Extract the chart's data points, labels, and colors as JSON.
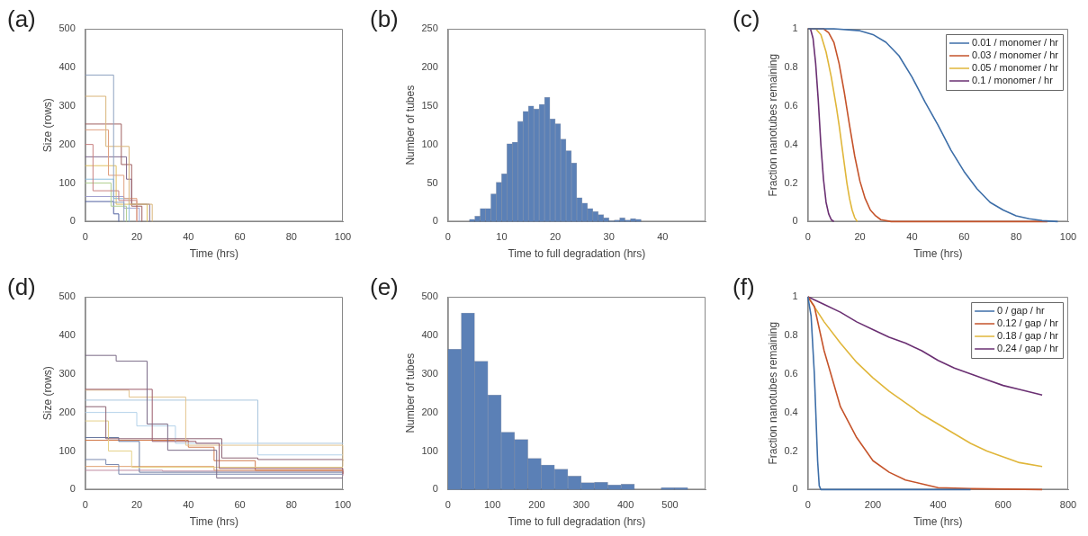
{
  "chart_data": [
    {
      "type": "step",
      "title": "(a)",
      "xlabel": "Time (hrs)",
      "ylabel": "Size (rows)",
      "xlim": [
        0,
        100
      ],
      "xticks": [
        0,
        20,
        40,
        60,
        80,
        100
      ],
      "ylim": [
        0,
        500
      ],
      "yticks": [
        0,
        100,
        200,
        300,
        400,
        500
      ],
      "series": [
        {
          "color": "#8fa3c0",
          "x": [
            0,
            11,
            15
          ],
          "values": [
            380,
            50,
            0
          ]
        },
        {
          "color": "#d9b57a",
          "x": [
            0,
            8,
            17,
            26
          ],
          "values": [
            325,
            195,
            45,
            0
          ]
        },
        {
          "color": "#a06060",
          "x": [
            0,
            14,
            18,
            22
          ],
          "values": [
            253,
            148,
            40,
            0
          ]
        },
        {
          "color": "#e0a080",
          "x": [
            0,
            9,
            15,
            20
          ],
          "values": [
            238,
            120,
            60,
            0
          ]
        },
        {
          "color": "#c98080",
          "x": [
            0,
            3,
            13,
            20
          ],
          "values": [
            200,
            80,
            55,
            0
          ]
        },
        {
          "color": "#7f6a90",
          "x": [
            0,
            16,
            18,
            25
          ],
          "values": [
            168,
            110,
            45,
            0
          ]
        },
        {
          "color": "#8cc0e0",
          "x": [
            0,
            11,
            17
          ],
          "values": [
            110,
            60,
            0
          ]
        },
        {
          "color": "#b0d090",
          "x": [
            0,
            10,
            16
          ],
          "values": [
            100,
            40,
            0
          ]
        },
        {
          "color": "#a0a0d0",
          "x": [
            0,
            15,
            21
          ],
          "values": [
            65,
            35,
            0
          ]
        },
        {
          "color": "#5060a0",
          "x": [
            0,
            11,
            13
          ],
          "values": [
            52,
            20,
            0
          ]
        },
        {
          "color": "#e0c060",
          "x": [
            0,
            12,
            24
          ],
          "values": [
            145,
            45,
            0
          ]
        }
      ]
    },
    {
      "type": "histogram",
      "title": "(b)",
      "xlabel": "Time to full degradation (hrs)",
      "ylabel": "Number of tubes",
      "xlim": [
        0,
        48
      ],
      "xticks": [
        0,
        10,
        20,
        30,
        40
      ],
      "ylim": [
        0,
        250
      ],
      "yticks": [
        0,
        50,
        100,
        150,
        200,
        250
      ],
      "color": "#5b80b6",
      "bins": [
        4,
        5,
        6,
        7,
        8,
        9,
        10,
        11,
        12,
        13,
        14,
        15,
        16,
        17,
        18,
        19,
        20,
        21,
        22,
        23,
        24,
        25,
        26,
        27,
        28,
        29,
        30,
        31,
        32,
        33,
        34,
        35,
        36
      ],
      "values": [
        3,
        7,
        17,
        17,
        36,
        51,
        62,
        101,
        103,
        130,
        143,
        150,
        146,
        152,
        161,
        133,
        127,
        107,
        92,
        76,
        31,
        24,
        17,
        13,
        9,
        5,
        1,
        2,
        5,
        2,
        4,
        3
      ]
    },
    {
      "type": "line",
      "title": "(c)",
      "xlabel": "Time (hrs)",
      "ylabel": "Fraction nanotubes remaining",
      "xlim": [
        0,
        100
      ],
      "xticks": [
        0,
        20,
        40,
        60,
        80,
        100
      ],
      "ylim": [
        0,
        1
      ],
      "yticks": [
        0,
        0.2,
        0.4,
        0.6,
        0.8,
        1
      ],
      "legend": "top right",
      "series": [
        {
          "name": "0.01 / monomer / hr",
          "color": "#3d6ea8",
          "x": [
            0,
            10,
            20,
            25,
            30,
            35,
            40,
            45,
            50,
            55,
            60,
            65,
            70,
            75,
            80,
            85,
            90,
            96
          ],
          "values": [
            1,
            1,
            0.99,
            0.97,
            0.93,
            0.86,
            0.75,
            0.62,
            0.5,
            0.37,
            0.26,
            0.17,
            0.1,
            0.06,
            0.03,
            0.015,
            0.005,
            0
          ]
        },
        {
          "name": "0.03 / monomer / hr",
          "color": "#c5532a",
          "x": [
            0,
            6,
            8,
            10,
            12,
            14,
            16,
            18,
            20,
            22,
            24,
            26,
            28,
            32,
            92
          ],
          "values": [
            1,
            1,
            0.98,
            0.93,
            0.82,
            0.67,
            0.5,
            0.34,
            0.21,
            0.12,
            0.06,
            0.03,
            0.01,
            0,
            0
          ]
        },
        {
          "name": "0.05 / monomer / hr",
          "color": "#e0b63a",
          "x": [
            0,
            3,
            5,
            7,
            9,
            11,
            12,
            13,
            14,
            15,
            16,
            17,
            18,
            19
          ],
          "values": [
            1,
            1,
            0.97,
            0.88,
            0.75,
            0.59,
            0.5,
            0.4,
            0.3,
            0.2,
            0.12,
            0.06,
            0.02,
            0
          ]
        },
        {
          "name": "0.1 / monomer / hr",
          "color": "#6a2f72",
          "x": [
            0,
            1,
            2,
            3,
            4,
            5,
            6,
            7,
            8,
            9,
            10
          ],
          "values": [
            1,
            1,
            0.95,
            0.82,
            0.63,
            0.4,
            0.22,
            0.1,
            0.04,
            0.01,
            0
          ]
        }
      ]
    },
    {
      "type": "step",
      "title": "(d)",
      "xlabel": "Time (hrs)",
      "ylabel": "Size (rows)",
      "xlim": [
        0,
        100
      ],
      "xticks": [
        0,
        20,
        40,
        60,
        80,
        100
      ],
      "ylim": [
        0,
        500
      ],
      "yticks": [
        0,
        100,
        200,
        300,
        400,
        500
      ],
      "series": [
        {
          "color": "#7a6a86",
          "x": [
            0,
            12,
            24,
            32,
            51,
            100
          ],
          "values": [
            348,
            333,
            170,
            102,
            30,
            30
          ]
        },
        {
          "color": "#9a5a6a",
          "x": [
            0,
            26,
            43,
            52,
            100
          ],
          "values": [
            260,
            125,
            120,
            55,
            40
          ]
        },
        {
          "color": "#e3c48e",
          "x": [
            0,
            17,
            39,
            100
          ],
          "values": [
            258,
            240,
            115,
            60
          ]
        },
        {
          "color": "#aac6de",
          "x": [
            0,
            67,
            100
          ],
          "values": [
            232,
            120,
            118
          ]
        },
        {
          "color": "#8c6272",
          "x": [
            0,
            8,
            53,
            67,
            100
          ],
          "values": [
            215,
            132,
            82,
            78,
            75
          ]
        },
        {
          "color": "#b4d2ea",
          "x": [
            0,
            20,
            35,
            67,
            100
          ],
          "values": [
            200,
            165,
            120,
            90,
            90
          ]
        },
        {
          "color": "#e6d28a",
          "x": [
            0,
            9,
            18,
            100
          ],
          "values": [
            178,
            100,
            58,
            58
          ]
        },
        {
          "color": "#6a7aa0",
          "x": [
            0,
            13,
            21,
            100
          ],
          "values": [
            135,
            125,
            45,
            45
          ]
        },
        {
          "color": "#d27a4a",
          "x": [
            0,
            40,
            50,
            66,
            100
          ],
          "values": [
            128,
            110,
            75,
            50,
            50
          ]
        },
        {
          "color": "#7a8ab0",
          "x": [
            0,
            8,
            13,
            100
          ],
          "values": [
            78,
            65,
            40,
            40
          ]
        },
        {
          "color": "#e0a070",
          "x": [
            0,
            50,
            100
          ],
          "values": [
            60,
            50,
            42
          ]
        },
        {
          "color": "#c08aa0",
          "x": [
            0,
            30,
            100
          ],
          "values": [
            50,
            48,
            35
          ]
        }
      ]
    },
    {
      "type": "histogram",
      "title": "(e)",
      "xlabel": "Time to full degradation (hrs)",
      "ylabel": "Number of tubes",
      "xlim": [
        0,
        580
      ],
      "xticks": [
        0,
        100,
        200,
        300,
        400,
        500
      ],
      "ylim": [
        0,
        500
      ],
      "yticks": [
        0,
        100,
        200,
        300,
        400,
        500
      ],
      "color": "#5b80b6",
      "bins": [
        0,
        30,
        60,
        90,
        120,
        150,
        180,
        210,
        240,
        270,
        300,
        330,
        360,
        390,
        420,
        450,
        480,
        510,
        540
      ],
      "values": [
        364,
        458,
        333,
        245,
        149,
        130,
        81,
        64,
        53,
        35,
        18,
        19,
        12,
        14,
        0,
        0,
        5,
        5
      ]
    },
    {
      "type": "line",
      "title": "(f)",
      "xlabel": "Time (hrs)",
      "ylabel": "Fraction nanotubes remaining",
      "xlim": [
        0,
        800
      ],
      "xticks": [
        0,
        200,
        400,
        600,
        800
      ],
      "ylim": [
        0,
        1
      ],
      "yticks": [
        0,
        0.2,
        0.4,
        0.6,
        0.8,
        1
      ],
      "legend": "top right",
      "series": [
        {
          "name": "0 / gap / hr",
          "color": "#3d6ea8",
          "x": [
            0,
            10,
            20,
            30,
            35,
            40,
            500
          ],
          "values": [
            1,
            0.9,
            0.6,
            0.15,
            0.02,
            0,
            0
          ]
        },
        {
          "name": "0.12 / gap / hr",
          "color": "#c5532a",
          "x": [
            0,
            20,
            50,
            100,
            150,
            200,
            250,
            300,
            350,
            400,
            500,
            720
          ],
          "values": [
            1,
            0.95,
            0.72,
            0.43,
            0.27,
            0.15,
            0.09,
            0.05,
            0.03,
            0.01,
            0.005,
            0
          ]
        },
        {
          "name": "0.18 / gap / hr",
          "color": "#e0b63a",
          "x": [
            0,
            50,
            100,
            150,
            200,
            250,
            300,
            350,
            400,
            450,
            500,
            550,
            600,
            650,
            720
          ],
          "values": [
            1,
            0.87,
            0.76,
            0.66,
            0.58,
            0.51,
            0.45,
            0.39,
            0.34,
            0.29,
            0.24,
            0.2,
            0.17,
            0.14,
            0.12
          ]
        },
        {
          "name": "0.24 / gap / hr",
          "color": "#6a2f72",
          "x": [
            0,
            50,
            100,
            150,
            200,
            250,
            300,
            350,
            400,
            450,
            500,
            550,
            600,
            650,
            720
          ],
          "values": [
            1,
            0.96,
            0.92,
            0.87,
            0.83,
            0.79,
            0.76,
            0.72,
            0.67,
            0.63,
            0.6,
            0.57,
            0.54,
            0.52,
            0.49
          ]
        }
      ]
    }
  ]
}
